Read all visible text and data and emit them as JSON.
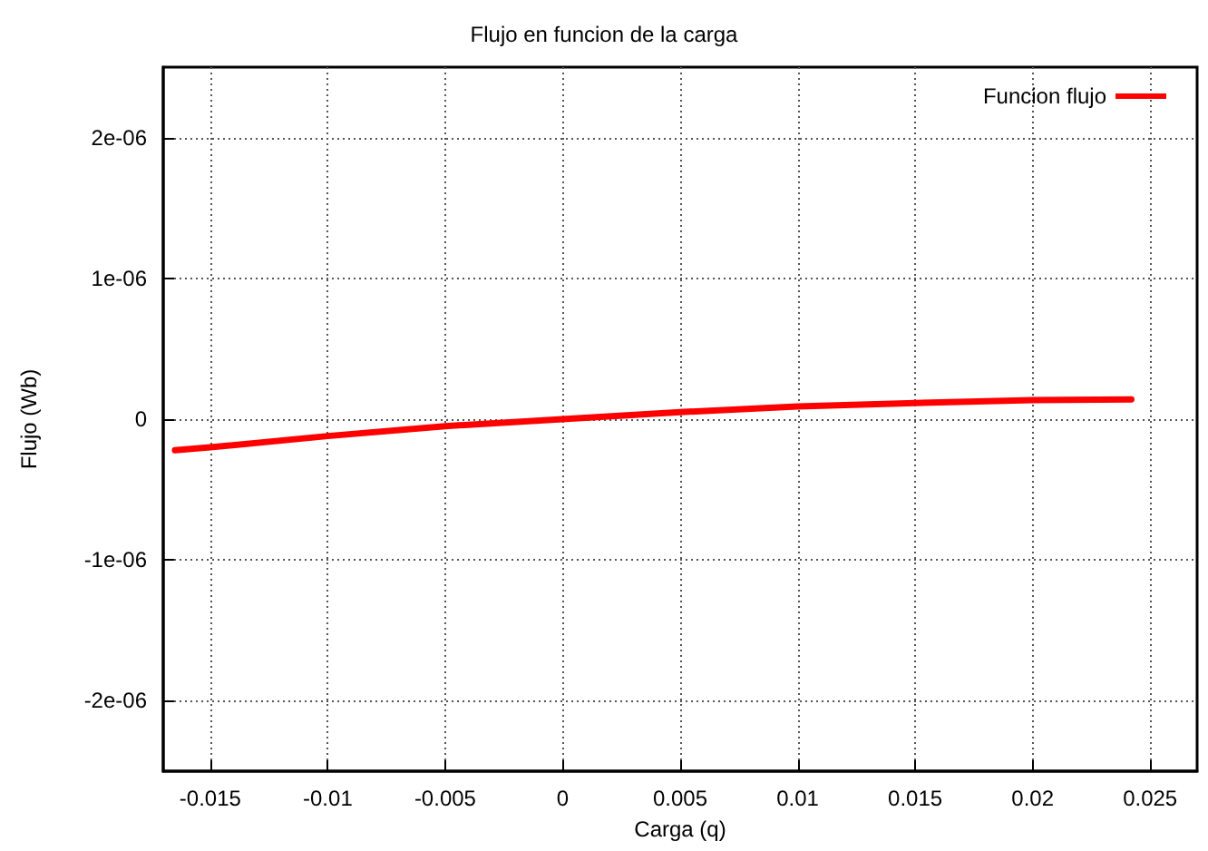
{
  "chart_data": {
    "type": "line",
    "title": "Flujo en funcion de la carga",
    "xlabel": "Carga (q)",
    "ylabel": "Flujo (Wb)",
    "x": [
      -0.0165,
      -0.015,
      -0.01,
      -0.005,
      0,
      0.005,
      0.01,
      0.015,
      0.02,
      0.0242
    ],
    "series": [
      {
        "name": "Funcion flujo",
        "color": "#ff0000",
        "values": [
          -2.2e-07,
          -2e-07,
          -1.2e-07,
          -5e-08,
          0,
          5e-08,
          9e-08,
          1.15e-07,
          1.35e-07,
          1.4e-07
        ]
      }
    ],
    "xlim": [
      -0.017,
      0.027
    ],
    "xticks": [
      -0.015,
      -0.01,
      -0.005,
      0,
      0.005,
      0.01,
      0.015,
      0.02,
      0.025
    ],
    "ylim": [
      -2.5e-06,
      2.5e-06
    ],
    "yticks": [
      {
        "value": -2e-06,
        "label": "-2e-06"
      },
      {
        "value": -1e-06,
        "label": "-1e-06"
      },
      0,
      {
        "value": 1e-06,
        "label": "1e-06"
      },
      {
        "value": 2e-06,
        "label": "2e-06"
      }
    ],
    "grid": true,
    "legend": "top right",
    "marker": "none",
    "line_style": "solid"
  }
}
